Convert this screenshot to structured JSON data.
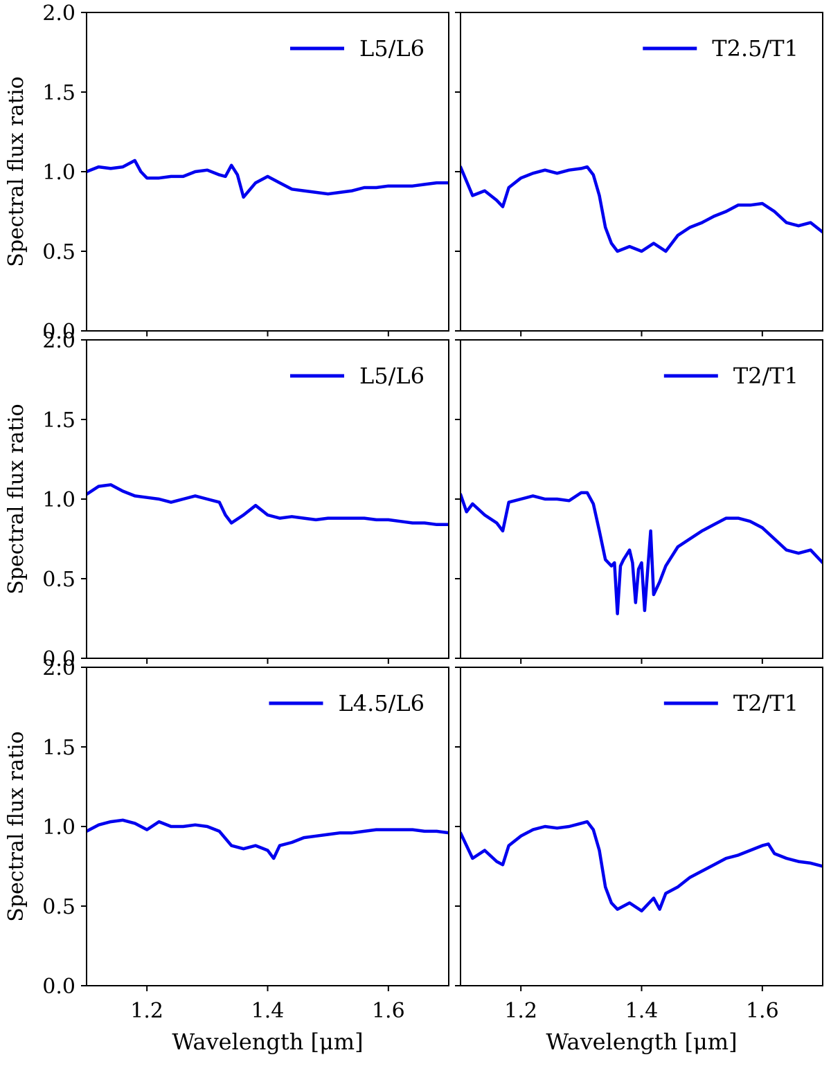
{
  "figure": {
    "line_color": "#0000ee",
    "axis_color": "#000000"
  },
  "chart_data": [
    {
      "type": "line",
      "panel": "top-left",
      "ylabel": "Spectral flux ratio",
      "xlabel": "",
      "xlim": [
        1.1,
        1.7
      ],
      "ylim": [
        0.0,
        2.0
      ],
      "yticks": [
        "0.0",
        "0.5",
        "1.0",
        "1.5",
        "2.0"
      ],
      "xticks": [],
      "legend": "top-right",
      "series": [
        {
          "name": "L5/L6",
          "x": [
            1.1,
            1.12,
            1.14,
            1.16,
            1.18,
            1.19,
            1.2,
            1.22,
            1.24,
            1.26,
            1.28,
            1.3,
            1.32,
            1.33,
            1.34,
            1.35,
            1.36,
            1.38,
            1.4,
            1.42,
            1.44,
            1.46,
            1.48,
            1.5,
            1.52,
            1.54,
            1.56,
            1.58,
            1.6,
            1.62,
            1.64,
            1.66,
            1.68,
            1.7
          ],
          "values": [
            1.0,
            1.03,
            1.02,
            1.03,
            1.07,
            1.0,
            0.96,
            0.96,
            0.97,
            0.97,
            1.0,
            1.01,
            0.98,
            0.97,
            1.04,
            0.98,
            0.84,
            0.93,
            0.97,
            0.93,
            0.89,
            0.88,
            0.87,
            0.86,
            0.87,
            0.88,
            0.9,
            0.9,
            0.91,
            0.91,
            0.91,
            0.92,
            0.93,
            0.93
          ]
        }
      ]
    },
    {
      "type": "line",
      "panel": "top-right",
      "ylabel": "",
      "xlabel": "",
      "xlim": [
        1.1,
        1.7
      ],
      "ylim": [
        0.0,
        2.0
      ],
      "yticks": [],
      "xticks": [],
      "legend": "top-right",
      "series": [
        {
          "name": "T2.5/T1",
          "x": [
            1.1,
            1.12,
            1.14,
            1.16,
            1.17,
            1.18,
            1.2,
            1.22,
            1.24,
            1.26,
            1.28,
            1.3,
            1.31,
            1.32,
            1.33,
            1.34,
            1.35,
            1.36,
            1.38,
            1.4,
            1.42,
            1.44,
            1.46,
            1.48,
            1.5,
            1.52,
            1.54,
            1.56,
            1.58,
            1.6,
            1.62,
            1.64,
            1.66,
            1.68,
            1.7
          ],
          "values": [
            1.03,
            0.85,
            0.88,
            0.82,
            0.78,
            0.9,
            0.96,
            0.99,
            1.01,
            0.99,
            1.01,
            1.02,
            1.03,
            0.98,
            0.85,
            0.65,
            0.55,
            0.5,
            0.53,
            0.5,
            0.55,
            0.5,
            0.6,
            0.65,
            0.68,
            0.72,
            0.75,
            0.79,
            0.79,
            0.8,
            0.75,
            0.68,
            0.66,
            0.68,
            0.62
          ]
        }
      ]
    },
    {
      "type": "line",
      "panel": "middle-left",
      "ylabel": "Spectral flux ratio",
      "xlabel": "",
      "xlim": [
        1.1,
        1.7
      ],
      "ylim": [
        0.0,
        2.0
      ],
      "yticks": [
        "0.0",
        "0.5",
        "1.0",
        "1.5",
        "2.0"
      ],
      "xticks": [],
      "legend": "top-right",
      "series": [
        {
          "name": "L5/L6",
          "x": [
            1.1,
            1.12,
            1.14,
            1.16,
            1.18,
            1.2,
            1.22,
            1.24,
            1.26,
            1.28,
            1.3,
            1.32,
            1.33,
            1.34,
            1.36,
            1.38,
            1.4,
            1.42,
            1.44,
            1.46,
            1.48,
            1.5,
            1.52,
            1.54,
            1.56,
            1.58,
            1.6,
            1.62,
            1.64,
            1.66,
            1.68,
            1.7
          ],
          "values": [
            1.03,
            1.08,
            1.09,
            1.05,
            1.02,
            1.01,
            1.0,
            0.98,
            1.0,
            1.02,
            1.0,
            0.98,
            0.9,
            0.85,
            0.9,
            0.96,
            0.9,
            0.88,
            0.89,
            0.88,
            0.87,
            0.88,
            0.88,
            0.88,
            0.88,
            0.87,
            0.87,
            0.86,
            0.85,
            0.85,
            0.84,
            0.84
          ]
        }
      ]
    },
    {
      "type": "line",
      "panel": "middle-right",
      "ylabel": "",
      "xlabel": "",
      "xlim": [
        1.1,
        1.7
      ],
      "ylim": [
        0.0,
        2.0
      ],
      "yticks": [],
      "xticks": [],
      "legend": "top-right",
      "series": [
        {
          "name": "T2/T1",
          "x": [
            1.1,
            1.11,
            1.12,
            1.14,
            1.16,
            1.17,
            1.18,
            1.2,
            1.22,
            1.24,
            1.26,
            1.28,
            1.3,
            1.31,
            1.32,
            1.33,
            1.34,
            1.35,
            1.355,
            1.36,
            1.365,
            1.37,
            1.38,
            1.385,
            1.39,
            1.395,
            1.4,
            1.405,
            1.41,
            1.415,
            1.42,
            1.43,
            1.44,
            1.46,
            1.48,
            1.5,
            1.52,
            1.54,
            1.56,
            1.58,
            1.6,
            1.62,
            1.64,
            1.66,
            1.68,
            1.7
          ],
          "values": [
            1.03,
            0.92,
            0.97,
            0.9,
            0.85,
            0.8,
            0.98,
            1.0,
            1.02,
            1.0,
            1.0,
            0.99,
            1.04,
            1.04,
            0.97,
            0.8,
            0.62,
            0.58,
            0.6,
            0.28,
            0.58,
            0.62,
            0.68,
            0.6,
            0.35,
            0.56,
            0.6,
            0.3,
            0.55,
            0.8,
            0.4,
            0.48,
            0.58,
            0.7,
            0.75,
            0.8,
            0.84,
            0.88,
            0.88,
            0.86,
            0.82,
            0.75,
            0.68,
            0.66,
            0.68,
            0.6
          ]
        }
      ]
    },
    {
      "type": "line",
      "panel": "bottom-left",
      "ylabel": "Spectral flux ratio",
      "xlabel": "Wavelength [μm]",
      "xlim": [
        1.1,
        1.7
      ],
      "ylim": [
        0.0,
        2.0
      ],
      "yticks": [
        "0.0",
        "0.5",
        "1.0",
        "1.5",
        "2.0"
      ],
      "xticks": [
        "1.2",
        "1.4",
        "1.6"
      ],
      "legend": "top-right",
      "series": [
        {
          "name": "L4.5/L6",
          "x": [
            1.1,
            1.12,
            1.14,
            1.16,
            1.18,
            1.2,
            1.22,
            1.24,
            1.26,
            1.28,
            1.3,
            1.32,
            1.34,
            1.36,
            1.38,
            1.4,
            1.41,
            1.42,
            1.44,
            1.46,
            1.48,
            1.5,
            1.52,
            1.54,
            1.56,
            1.58,
            1.6,
            1.62,
            1.64,
            1.66,
            1.68,
            1.7
          ],
          "values": [
            0.97,
            1.01,
            1.03,
            1.04,
            1.02,
            0.98,
            1.03,
            1.0,
            1.0,
            1.01,
            1.0,
            0.97,
            0.88,
            0.86,
            0.88,
            0.85,
            0.8,
            0.88,
            0.9,
            0.93,
            0.94,
            0.95,
            0.96,
            0.96,
            0.97,
            0.98,
            0.98,
            0.98,
            0.98,
            0.97,
            0.97,
            0.96
          ]
        }
      ]
    },
    {
      "type": "line",
      "panel": "bottom-right",
      "ylabel": "",
      "xlabel": "Wavelength [μm]",
      "xlim": [
        1.1,
        1.7
      ],
      "ylim": [
        0.0,
        2.0
      ],
      "yticks": [],
      "xticks": [
        "1.2",
        "1.4",
        "1.6"
      ],
      "legend": "top-right",
      "series": [
        {
          "name": "T2/T1",
          "x": [
            1.1,
            1.12,
            1.14,
            1.16,
            1.17,
            1.18,
            1.2,
            1.22,
            1.24,
            1.26,
            1.28,
            1.3,
            1.31,
            1.32,
            1.33,
            1.34,
            1.35,
            1.36,
            1.38,
            1.4,
            1.42,
            1.43,
            1.44,
            1.46,
            1.48,
            1.5,
            1.52,
            1.54,
            1.56,
            1.58,
            1.6,
            1.61,
            1.62,
            1.64,
            1.66,
            1.68,
            1.7
          ],
          "values": [
            0.96,
            0.8,
            0.85,
            0.78,
            0.76,
            0.88,
            0.94,
            0.98,
            1.0,
            0.99,
            1.0,
            1.02,
            1.03,
            0.98,
            0.85,
            0.62,
            0.52,
            0.48,
            0.52,
            0.47,
            0.55,
            0.48,
            0.58,
            0.62,
            0.68,
            0.72,
            0.76,
            0.8,
            0.82,
            0.85,
            0.88,
            0.89,
            0.83,
            0.8,
            0.78,
            0.77,
            0.75
          ]
        }
      ]
    }
  ]
}
